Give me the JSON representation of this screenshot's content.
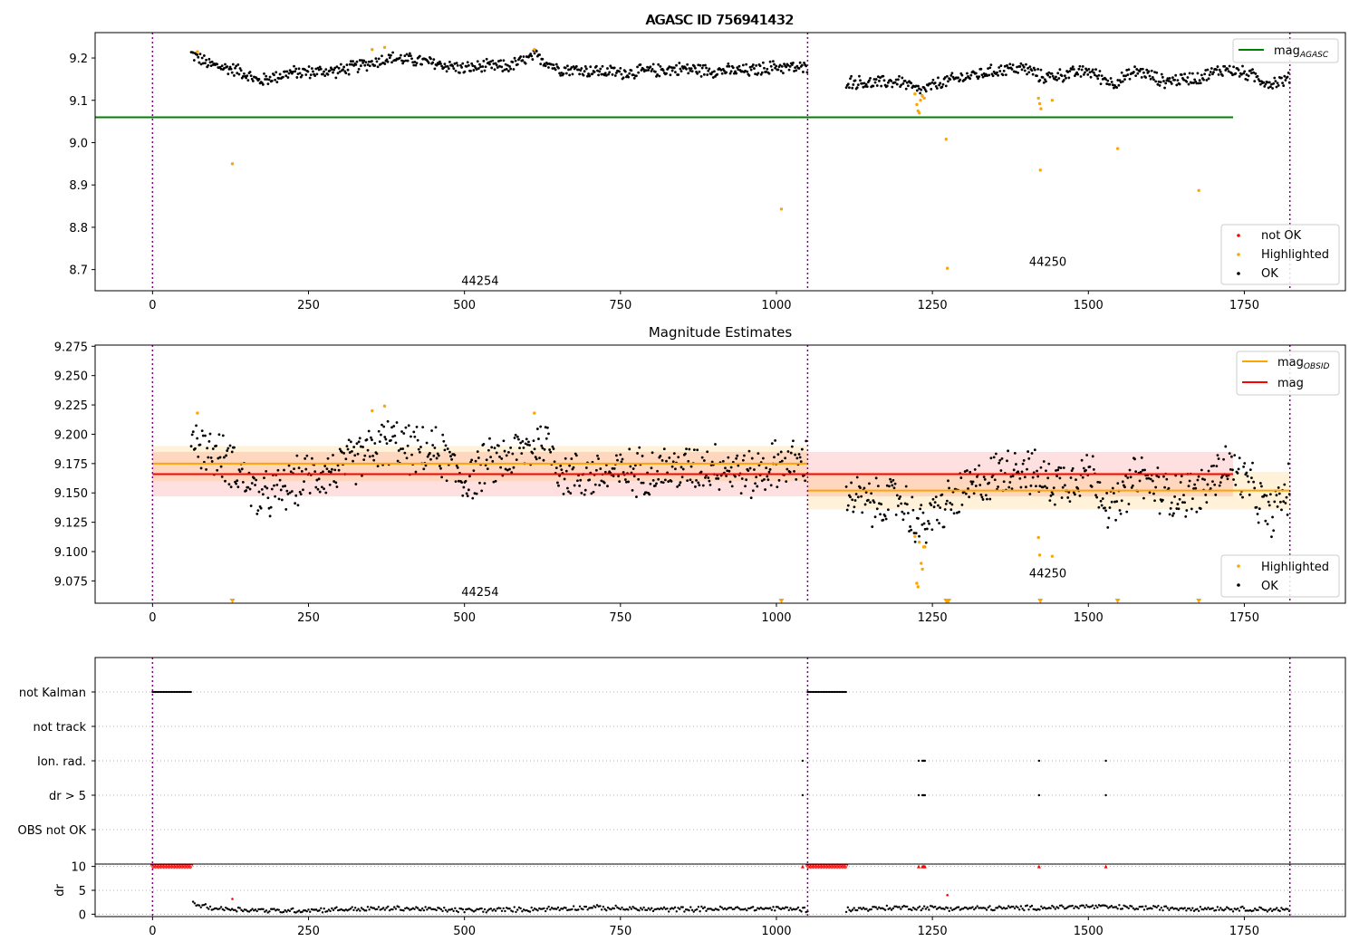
{
  "figure": {
    "title": "AGASC ID 756941432"
  },
  "chart_data": [
    {
      "id": "agasc",
      "type": "scatter",
      "title": "AGASC ID 756941432",
      "xlim": [
        -92,
        1912
      ],
      "ylim": [
        8.65,
        9.26
      ],
      "xticks": [
        0,
        250,
        500,
        750,
        1000,
        1250,
        1500,
        1750,
        2000
      ],
      "yticks": [
        8.7,
        8.8,
        8.9,
        9.0,
        9.1,
        9.2
      ],
      "ytick_labels": [
        "8.7",
        "8.8",
        "8.9",
        "9.0",
        "9.1",
        "9.2"
      ],
      "obs_boundaries": [
        0,
        1050,
        1823
      ],
      "obs_labels": [
        {
          "text": "44254",
          "x": 525,
          "y": 8.675
        },
        {
          "text": "44250",
          "x": 1435,
          "y": 8.72
        }
      ],
      "hlines": [
        {
          "name": "mag_AGASC",
          "value": 9.06,
          "x_range": [
            -92,
            1912
          ],
          "color": "#008000"
        }
      ],
      "series": [
        {
          "name": "OK",
          "color": "#000000",
          "segments": [
            {
              "x_start": 62,
              "x_end": 1050,
              "step": 1.6,
              "points": [
                [
                  62,
                  9.21
                ],
                [
                  90,
                  9.185
                ],
                [
                  140,
                  9.17
                ],
                [
                  170,
                  9.145
                ],
                [
                  220,
                  9.165
                ],
                [
                  300,
                  9.17
                ],
                [
                  340,
                  9.185
                ],
                [
                  380,
                  9.2
                ],
                [
                  420,
                  9.195
                ],
                [
                  460,
                  9.185
                ],
                [
                  500,
                  9.175
                ],
                [
                  530,
                  9.18
                ],
                [
                  570,
                  9.18
                ],
                [
                  615,
                  9.205
                ],
                [
                  650,
                  9.175
                ],
                [
                  700,
                  9.17
                ],
                [
                  760,
                  9.165
                ],
                [
                  800,
                  9.17
                ],
                [
                  850,
                  9.175
                ],
                [
                  900,
                  9.17
                ],
                [
                  960,
                  9.17
                ],
                [
                  1000,
                  9.18
                ],
                [
                  1050,
                  9.175
                ]
              ]
            },
            {
              "x_start": 1112,
              "x_end": 1823,
              "step": 1.6,
              "points": [
                [
                  1112,
                  9.145
                ],
                [
                  1150,
                  9.14
                ],
                [
                  1200,
                  9.145
                ],
                [
                  1230,
                  9.12
                ],
                [
                  1260,
                  9.14
                ],
                [
                  1300,
                  9.155
                ],
                [
                  1370,
                  9.175
                ],
                [
                  1400,
                  9.175
                ],
                [
                  1425,
                  9.155
                ],
                [
                  1460,
                  9.16
                ],
                [
                  1500,
                  9.17
                ],
                [
                  1540,
                  9.14
                ],
                [
                  1580,
                  9.17
                ],
                [
                  1620,
                  9.145
                ],
                [
                  1680,
                  9.155
                ],
                [
                  1720,
                  9.175
                ],
                [
                  1760,
                  9.16
                ],
                [
                  1790,
                  9.14
                ],
                [
                  1823,
                  9.15
                ]
              ]
            }
          ],
          "amplitude": 0.018
        },
        {
          "name": "Highlighted",
          "color": "#ffa500",
          "points": [
            [
              72,
              9.215
            ],
            [
              352,
              9.22
            ],
            [
              372,
              9.225
            ],
            [
              612,
              9.22
            ],
            [
              128,
              8.95
            ],
            [
              1008,
              8.843
            ],
            [
              1222,
              9.115
            ],
            [
              1225,
              9.09
            ],
            [
              1227,
              9.075
            ],
            [
              1229,
              9.07
            ],
            [
              1231,
              9.1
            ],
            [
              1234,
              9.11
            ],
            [
              1237,
              9.105
            ],
            [
              1272,
              9.008
            ],
            [
              1274,
              8.703
            ],
            [
              1420,
              9.105
            ],
            [
              1422,
              9.092
            ],
            [
              1424,
              9.08
            ],
            [
              1423,
              8.935
            ],
            [
              1442,
              9.1
            ],
            [
              1547,
              8.986
            ],
            [
              1677,
              8.887
            ]
          ]
        },
        {
          "name": "not OK",
          "color": "#ff0000",
          "points": []
        }
      ],
      "legend_lines": [
        "mag_AGASC"
      ],
      "legend_points": [
        "not OK",
        "Highlighted",
        "OK"
      ]
    },
    {
      "id": "estimates",
      "type": "scatter",
      "title": "Magnitude Estimates",
      "xlim": [
        -92,
        1912
      ],
      "ylim": [
        9.056,
        9.276
      ],
      "xticks": [
        0,
        250,
        500,
        750,
        1000,
        1250,
        1500,
        1750,
        2000
      ],
      "yticks": [
        9.075,
        9.1,
        9.125,
        9.15,
        9.175,
        9.2,
        9.225,
        9.25,
        9.275
      ],
      "ytick_labels": [
        "9.075",
        "9.100",
        "9.125",
        "9.150",
        "9.175",
        "9.200",
        "9.225",
        "9.250",
        "9.275"
      ],
      "obs_boundaries": [
        0,
        1050,
        1823
      ],
      "obs_labels": [
        {
          "text": "44254",
          "x": 525,
          "y": 9.066
        },
        {
          "text": "44250",
          "x": 1435,
          "y": 9.082
        }
      ],
      "bands": [
        {
          "name": "mag",
          "center": 9.166,
          "half_width": 0.019,
          "x_range": [
            0,
            1912
          ],
          "color": "#ff0000",
          "opacity": 0.12
        },
        {
          "name": "mag_OBSID",
          "center": 9.175,
          "half_width": 0.015,
          "x_range": [
            0,
            1050
          ],
          "color": "#ffa500",
          "opacity": 0.15
        },
        {
          "name": "mag_OBSID",
          "center": 9.152,
          "half_width": 0.016,
          "x_range": [
            1050,
            1823
          ],
          "color": "#ffa500",
          "opacity": 0.15
        }
      ],
      "hlines": [
        {
          "name": "mag_OBSID",
          "value": 9.175,
          "x_range": [
            0,
            1050
          ],
          "color": "#ffa500"
        },
        {
          "name": "mag_OBSID",
          "value": 9.152,
          "x_range": [
            1050,
            1823
          ],
          "color": "#ffa500"
        },
        {
          "name": "mag",
          "value": 9.166,
          "x_range": [
            0,
            1912
          ],
          "color": "#ff0000"
        }
      ],
      "series": [
        {
          "name": "OK",
          "color": "#000000",
          "segments": [
            {
              "x_start": 62,
              "x_end": 1050,
              "step": 1.6,
              "points": [
                [
                  62,
                  9.2
                ],
                [
                  90,
                  9.185
                ],
                [
                  130,
                  9.175
                ],
                [
                  170,
                  9.145
                ],
                [
                  200,
                  9.15
                ],
                [
                  250,
                  9.165
                ],
                [
                  300,
                  9.17
                ],
                [
                  330,
                  9.18
                ],
                [
                  380,
                  9.195
                ],
                [
                  420,
                  9.185
                ],
                [
                  460,
                  9.185
                ],
                [
                  500,
                  9.16
                ],
                [
                  540,
                  9.175
                ],
                [
                  590,
                  9.185
                ],
                [
                  630,
                  9.195
                ],
                [
                  660,
                  9.165
                ],
                [
                  720,
                  9.165
                ],
                [
                  800,
                  9.17
                ],
                [
                  850,
                  9.17
                ],
                [
                  900,
                  9.175
                ],
                [
                  960,
                  9.165
                ],
                [
                  1000,
                  9.175
                ],
                [
                  1050,
                  9.175
                ]
              ]
            },
            {
              "x_start": 1112,
              "x_end": 1823,
              "step": 1.6,
              "points": [
                [
                  1112,
                  9.15
                ],
                [
                  1150,
                  9.14
                ],
                [
                  1200,
                  9.145
                ],
                [
                  1230,
                  9.12
                ],
                [
                  1260,
                  9.135
                ],
                [
                  1300,
                  9.15
                ],
                [
                  1350,
                  9.165
                ],
                [
                  1390,
                  9.175
                ],
                [
                  1425,
                  9.16
                ],
                [
                  1460,
                  9.16
                ],
                [
                  1500,
                  9.17
                ],
                [
                  1540,
                  9.135
                ],
                [
                  1580,
                  9.165
                ],
                [
                  1620,
                  9.15
                ],
                [
                  1680,
                  9.15
                ],
                [
                  1720,
                  9.175
                ],
                [
                  1760,
                  9.155
                ],
                [
                  1790,
                  9.13
                ],
                [
                  1823,
                  9.155
                ]
              ]
            }
          ],
          "amplitude": 0.024
        },
        {
          "name": "Highlighted",
          "color": "#ffa500",
          "points": [
            [
              72,
              9.218
            ],
            [
              352,
              9.22
            ],
            [
              372,
              9.224
            ],
            [
              612,
              9.218
            ],
            [
              1222,
              9.113
            ],
            [
              1225,
              9.073
            ],
            [
              1227,
              9.07
            ],
            [
              1229,
              9.108
            ],
            [
              1232,
              9.09
            ],
            [
              1234,
              9.085
            ],
            [
              1236,
              9.104
            ],
            [
              1238,
              9.104
            ],
            [
              1420,
              9.112
            ],
            [
              1422,
              9.097
            ],
            [
              1442,
              9.096
            ]
          ]
        }
      ],
      "clipped_markers": {
        "color": "#ffa500",
        "x": [
          128,
          1008,
          1272,
          1274,
          1276,
          1423,
          1547,
          1677
        ]
      },
      "legend_lines": [
        "mag_OBSID",
        "mag"
      ],
      "legend_points": [
        "Highlighted",
        "OK"
      ]
    },
    {
      "id": "flags",
      "type": "scatter",
      "categories": [
        "not Kalman",
        "not track",
        "Ion. rad.",
        "dr > 5",
        "OBS not OK"
      ],
      "xlim": [
        -92,
        1912
      ],
      "obs_boundaries": [
        0,
        1050,
        1823
      ],
      "flags": {
        "not Kalman": {
          "ranges": [
            [
              0,
              62
            ],
            [
              1050,
              1112
            ]
          ]
        },
        "not track": {
          "ranges": []
        },
        "Ion. rad.": {
          "points": [
            1042,
            1228,
            1234,
            1236,
            1238,
            1421,
            1528
          ]
        },
        "dr > 5": {
          "points": [
            1042,
            1228,
            1234,
            1236,
            1238,
            1421,
            1528
          ]
        },
        "OBS not OK": {
          "ranges": []
        }
      }
    },
    {
      "id": "dr",
      "type": "scatter",
      "ylabel": "dr",
      "xlim": [
        -92,
        1912
      ],
      "ylim": [
        -0.5,
        10.5
      ],
      "yticks": [
        0,
        5,
        10
      ],
      "xticks": [
        0,
        250,
        500,
        750,
        1000,
        1250,
        1500,
        1750,
        2000
      ],
      "obs_boundaries": [
        0,
        1050,
        1823
      ],
      "series": [
        {
          "name": "dr",
          "color": "#000000",
          "segments": [
            {
              "x_start": 65,
              "x_end": 1050,
              "step": 2.5,
              "points": [
                [
                  65,
                  2.2
                ],
                [
                  100,
                  1.2
                ],
                [
                  200,
                  0.7
                ],
                [
                  300,
                  1.0
                ],
                [
                  400,
                  1.2
                ],
                [
                  500,
                  0.8
                ],
                [
                  600,
                  1.0
                ],
                [
                  700,
                  1.4
                ],
                [
                  800,
                  1.0
                ],
                [
                  900,
                  1.1
                ],
                [
                  1000,
                  1.2
                ],
                [
                  1050,
                  1.0
                ]
              ]
            },
            {
              "x_start": 1112,
              "x_end": 1823,
              "step": 2.5,
              "points": [
                [
                  1112,
                  1.0
                ],
                [
                  1200,
                  1.4
                ],
                [
                  1300,
                  1.2
                ],
                [
                  1400,
                  1.3
                ],
                [
                  1500,
                  1.6
                ],
                [
                  1550,
                  1.4
                ],
                [
                  1600,
                  1.3
                ],
                [
                  1700,
                  1.2
                ],
                [
                  1800,
                  1.0
                ],
                [
                  1823,
                  0.8
                ]
              ]
            }
          ],
          "amplitude": 0.6
        },
        {
          "name": "clipped",
          "color": "#ff0000",
          "value": 10,
          "ranges": [
            [
              0,
              62
            ],
            [
              1050,
              1112
            ]
          ],
          "points": [
            1042,
            1228,
            1234,
            1236,
            1238,
            1421,
            1528
          ]
        },
        {
          "name": "red",
          "color": "#ff0000",
          "points": [
            [
              128,
              3.2
            ],
            [
              1274,
              4.0
            ]
          ]
        }
      ]
    }
  ]
}
